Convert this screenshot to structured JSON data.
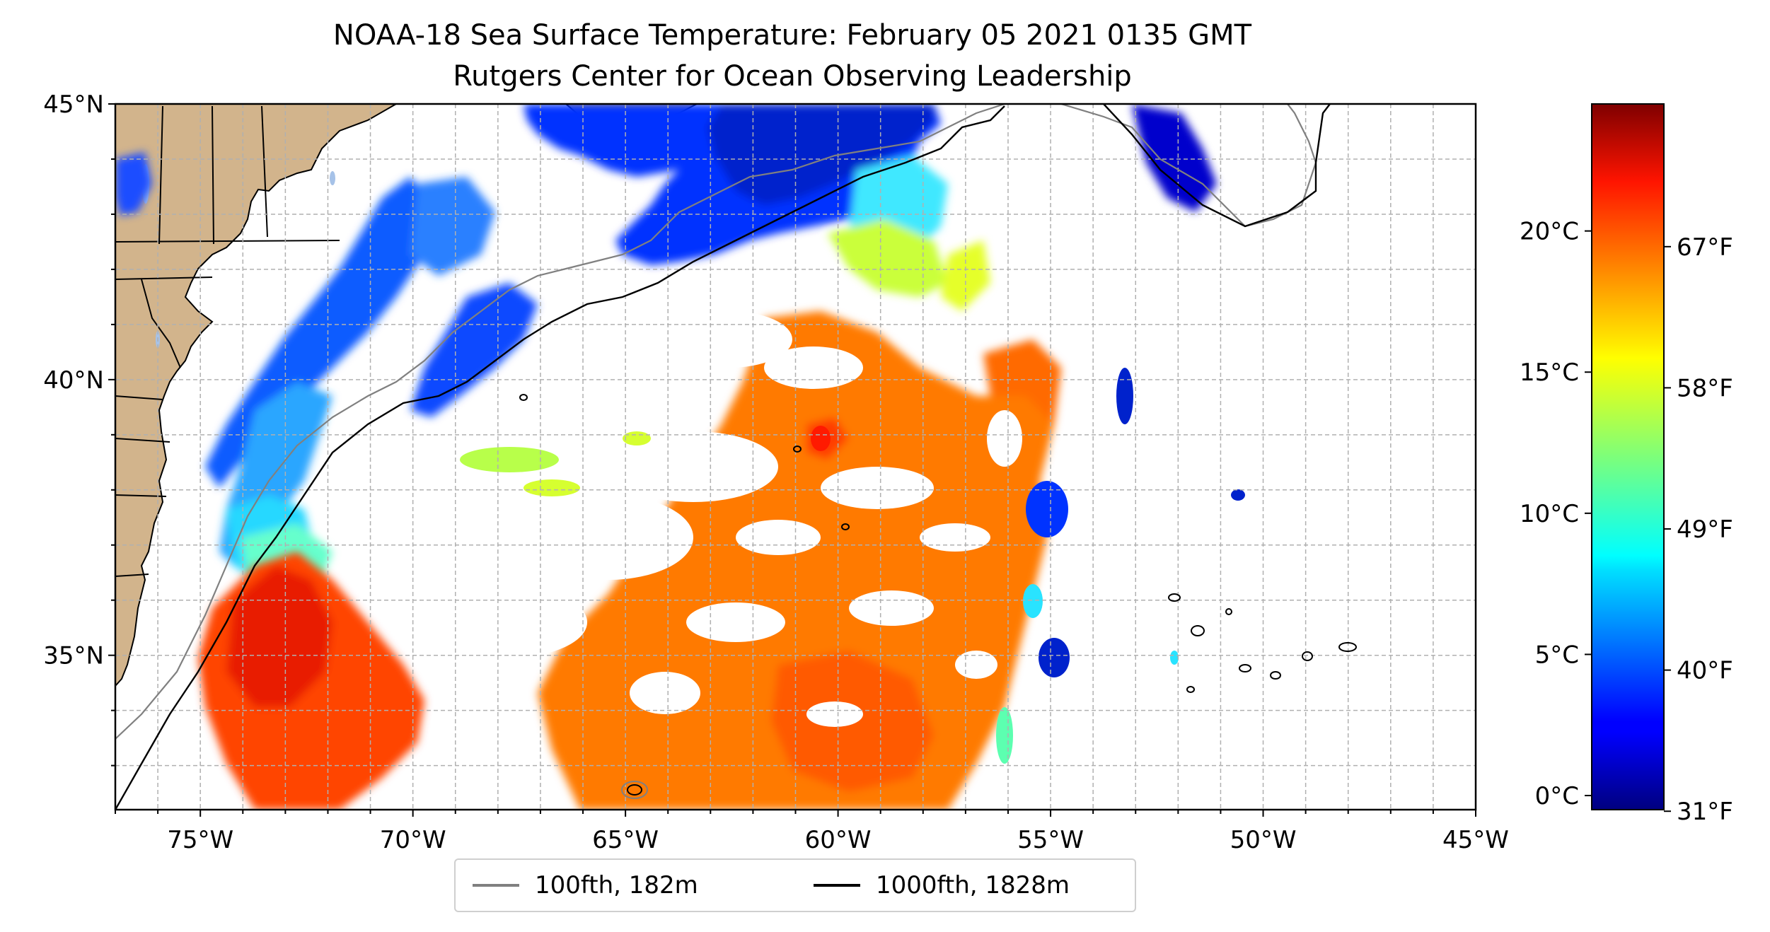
{
  "title": {
    "line1": "NOAA-18 Sea Surface Temperature: February 05 2021 0135 GMT",
    "line2": "Rutgers Center for Ocean Observing Leadership"
  },
  "map": {
    "lon_range": [
      -77,
      -45
    ],
    "lat_range": [
      32.2,
      45
    ],
    "x_ticks": [
      {
        "lon": -75,
        "label": "75°W"
      },
      {
        "lon": -70,
        "label": "70°W"
      },
      {
        "lon": -65,
        "label": "65°W"
      },
      {
        "lon": -60,
        "label": "60°W"
      },
      {
        "lon": -55,
        "label": "55°W"
      },
      {
        "lon": -50,
        "label": "50°W"
      },
      {
        "lon": -45,
        "label": "45°W"
      }
    ],
    "y_ticks": [
      {
        "lat": 45,
        "label": "45°N"
      },
      {
        "lat": 40,
        "label": "40°N"
      },
      {
        "lat": 35,
        "label": "35°N"
      }
    ],
    "gridlines": "dashed, every 1°",
    "land_color": "#d2b48c"
  },
  "colorbar": {
    "colormap": "jet",
    "range_c": [
      -0.5,
      24.5
    ],
    "celsius_ticks": [
      {
        "value": 0,
        "label": "0°C"
      },
      {
        "value": 5,
        "label": "5°C"
      },
      {
        "value": 10,
        "label": "10°C"
      },
      {
        "value": 15,
        "label": "15°C"
      },
      {
        "value": 20,
        "label": "20°C"
      }
    ],
    "fahrenheit_ticks": [
      {
        "value": 31,
        "label": "31°F"
      },
      {
        "value": 40,
        "label": "40°F"
      },
      {
        "value": 49,
        "label": "49°F"
      },
      {
        "value": 58,
        "label": "58°F"
      },
      {
        "value": 67,
        "label": "67°F"
      }
    ]
  },
  "legend": {
    "items": [
      {
        "label": "100fth, 182m",
        "color": "#808080"
      },
      {
        "label": "1000fth, 1828m",
        "color": "#000000"
      }
    ]
  }
}
